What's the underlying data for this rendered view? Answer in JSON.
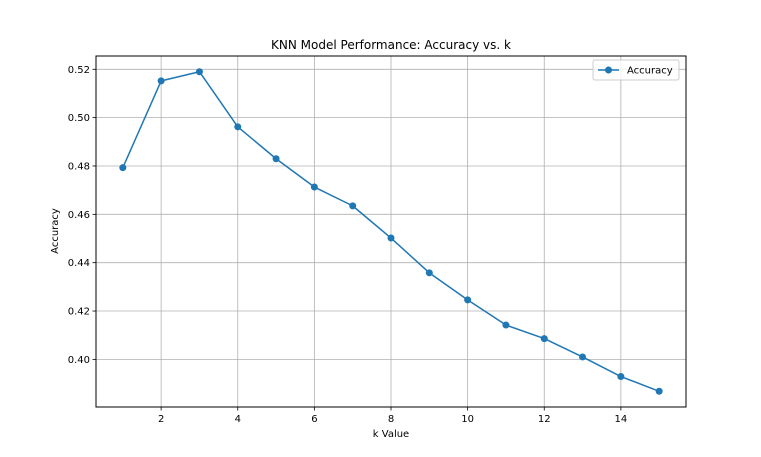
{
  "chart_data": {
    "type": "line",
    "title": "KNN Model Performance: Accuracy vs. k",
    "xlabel": "k Value",
    "ylabel": "Accuracy",
    "x": [
      1,
      2,
      3,
      4,
      5,
      6,
      7,
      8,
      9,
      10,
      11,
      12,
      13,
      14,
      15
    ],
    "series": [
      {
        "name": "Accuracy",
        "color": "#1f77b4",
        "marker": "circle",
        "values": [
          0.4793,
          0.5152,
          0.519,
          0.4962,
          0.483,
          0.4713,
          0.4635,
          0.4502,
          0.4358,
          0.4246,
          0.4142,
          0.4086,
          0.401,
          0.3929,
          0.3868
        ]
      }
    ],
    "xticks": [
      2,
      4,
      6,
      8,
      10,
      12,
      14
    ],
    "yticks": [
      0.4,
      0.42,
      0.44,
      0.46,
      0.48,
      0.5,
      0.52
    ],
    "ytick_labels": [
      "0.40",
      "0.42",
      "0.44",
      "0.46",
      "0.48",
      "0.50",
      "0.52"
    ],
    "xlim": [
      0.3,
      15.7
    ],
    "ylim": [
      0.3803,
      0.5255
    ],
    "grid": true,
    "legend_position": "upper right"
  }
}
